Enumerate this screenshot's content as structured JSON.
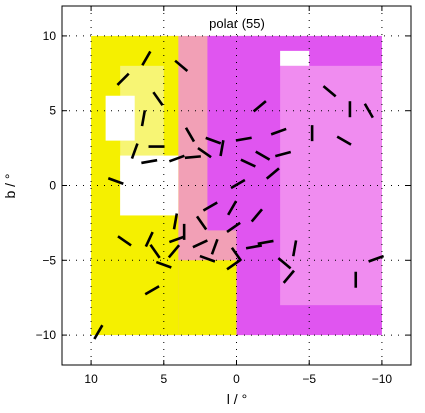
{
  "chart_data": {
    "type": "heatmap",
    "title": "polar (55)",
    "xlabel": "l / °",
    "ylabel": "b / °",
    "xlim": [
      12,
      -12
    ],
    "ylim": [
      -12,
      12
    ],
    "x_ticks": [
      10,
      5,
      0,
      -5,
      -10
    ],
    "x_tick_labels": [
      "10",
      "5",
      "0",
      "−5",
      "−10"
    ],
    "y_ticks": [
      10,
      5,
      0,
      -5,
      -10
    ],
    "y_tick_labels": [
      "10",
      "5",
      "0",
      "−5",
      "−10"
    ],
    "grid": true,
    "map_extent": {
      "l": [
        10,
        -10
      ],
      "b": [
        -10,
        10
      ]
    },
    "palette": {
      "white": "#ffffff",
      "pink": "#f08cf0",
      "magenta": "#e055f0",
      "yellow": "#f5f000",
      "light_yellow": "#f7f574",
      "salmon": "#f2a0b6"
    },
    "regions": [
      {
        "color": "salmon",
        "l": [
          6,
          -2
        ],
        "b": [
          -10,
          10
        ]
      },
      {
        "color": "magenta",
        "l": [
          2,
          -10
        ],
        "b": [
          -3,
          10
        ]
      },
      {
        "color": "magenta",
        "l": [
          0,
          -10
        ],
        "b": [
          -10,
          4
        ]
      },
      {
        "color": "pink",
        "l": [
          -3,
          -10
        ],
        "b": [
          -8,
          8
        ]
      },
      {
        "color": "yellow",
        "l": [
          10,
          4
        ],
        "b": [
          -10,
          10
        ]
      },
      {
        "color": "light_yellow",
        "l": [
          8,
          5
        ],
        "b": [
          -2,
          8
        ]
      },
      {
        "color": "yellow",
        "l": [
          4,
          0
        ],
        "b": [
          -10,
          -5
        ]
      },
      {
        "color": "white",
        "l": [
          8,
          4
        ],
        "b": [
          -2,
          2
        ]
      },
      {
        "color": "white",
        "l": [
          9,
          7
        ],
        "b": [
          3,
          6
        ]
      },
      {
        "color": "white",
        "l": [
          -3,
          -5
        ],
        "b": [
          8,
          9
        ]
      }
    ],
    "vectors": [
      {
        "l": 6.2,
        "b": 8.5,
        "angle": 60
      },
      {
        "l": 3.8,
        "b": 8.0,
        "angle": -40
      },
      {
        "l": 7.8,
        "b": 7.1,
        "angle": 45
      },
      {
        "l": 5.4,
        "b": 5.8,
        "angle": -55
      },
      {
        "l": 6.4,
        "b": 4.5,
        "angle": 80
      },
      {
        "l": -6.4,
        "b": 6.3,
        "angle": -40
      },
      {
        "l": -1.6,
        "b": 5.3,
        "angle": 40
      },
      {
        "l": -7.8,
        "b": 5.1,
        "angle": 90
      },
      {
        "l": -9.1,
        "b": 5.0,
        "angle": -60
      },
      {
        "l": 3.2,
        "b": 3.4,
        "angle": -60
      },
      {
        "l": -0.5,
        "b": 3.1,
        "angle": 10
      },
      {
        "l": -2.9,
        "b": 3.6,
        "angle": 20
      },
      {
        "l": 7.0,
        "b": 2.3,
        "angle": 70
      },
      {
        "l": 1.6,
        "b": 3.0,
        "angle": -20
      },
      {
        "l": -5.2,
        "b": 3.5,
        "angle": 90
      },
      {
        "l": -7.4,
        "b": 3.0,
        "angle": -30
      },
      {
        "l": 4.1,
        "b": 1.8,
        "angle": 20
      },
      {
        "l": 2.2,
        "b": 2.2,
        "angle": -35
      },
      {
        "l": 1.0,
        "b": 2.5,
        "angle": 80
      },
      {
        "l": -1.8,
        "b": 2.0,
        "angle": -30
      },
      {
        "l": -3.2,
        "b": 2.1,
        "angle": 15
      },
      {
        "l": 6.0,
        "b": 1.6,
        "angle": 10
      },
      {
        "l": 3.0,
        "b": 1.9,
        "angle": 5
      },
      {
        "l": -2.5,
        "b": 0.8,
        "angle": 40
      },
      {
        "l": 1.8,
        "b": -1.4,
        "angle": 30
      },
      {
        "l": 0.3,
        "b": -1.5,
        "angle": 60
      },
      {
        "l": -1.4,
        "b": -2.0,
        "angle": 50
      },
      {
        "l": 4.2,
        "b": -2.4,
        "angle": 80
      },
      {
        "l": 2.4,
        "b": -2.5,
        "angle": -55
      },
      {
        "l": 0.2,
        "b": -2.8,
        "angle": 35
      },
      {
        "l": 7.7,
        "b": -3.7,
        "angle": -35
      },
      {
        "l": 6.0,
        "b": -3.6,
        "angle": 65
      },
      {
        "l": 4.1,
        "b": -3.6,
        "angle": 20
      },
      {
        "l": 2.5,
        "b": -3.9,
        "angle": 25
      },
      {
        "l": 5.6,
        "b": -4.4,
        "angle": -55
      },
      {
        "l": 1.5,
        "b": -4.1,
        "angle": 70
      },
      {
        "l": 0.0,
        "b": -4.6,
        "angle": -55
      },
      {
        "l": -1.2,
        "b": -4.1,
        "angle": 10
      },
      {
        "l": -2.0,
        "b": -3.8,
        "angle": 10
      },
      {
        "l": -4.0,
        "b": -4.2,
        "angle": 80
      },
      {
        "l": 4.3,
        "b": -4.4,
        "angle": 50
      },
      {
        "l": 2.0,
        "b": -4.9,
        "angle": -20
      },
      {
        "l": 0.2,
        "b": -5.3,
        "angle": 35
      },
      {
        "l": -3.3,
        "b": -5.2,
        "angle": -40
      },
      {
        "l": 5.0,
        "b": -5.3,
        "angle": -20
      },
      {
        "l": -9.6,
        "b": -4.9,
        "angle": 20
      },
      {
        "l": -3.6,
        "b": -6.1,
        "angle": 50
      },
      {
        "l": 5.8,
        "b": -7.0,
        "angle": 30
      },
      {
        "l": -8.2,
        "b": -6.3,
        "angle": 90
      },
      {
        "l": 9.5,
        "b": -9.8,
        "angle": 60
      },
      {
        "l": 3.6,
        "b": -3.1,
        "angle": 90
      },
      {
        "l": 8.3,
        "b": 0.3,
        "angle": -20
      },
      {
        "l": -0.8,
        "b": 1.5,
        "angle": -25
      },
      {
        "l": 5.5,
        "b": 2.6,
        "angle": 0
      },
      {
        "l": -0.1,
        "b": 0.1,
        "angle": 30
      }
    ]
  }
}
